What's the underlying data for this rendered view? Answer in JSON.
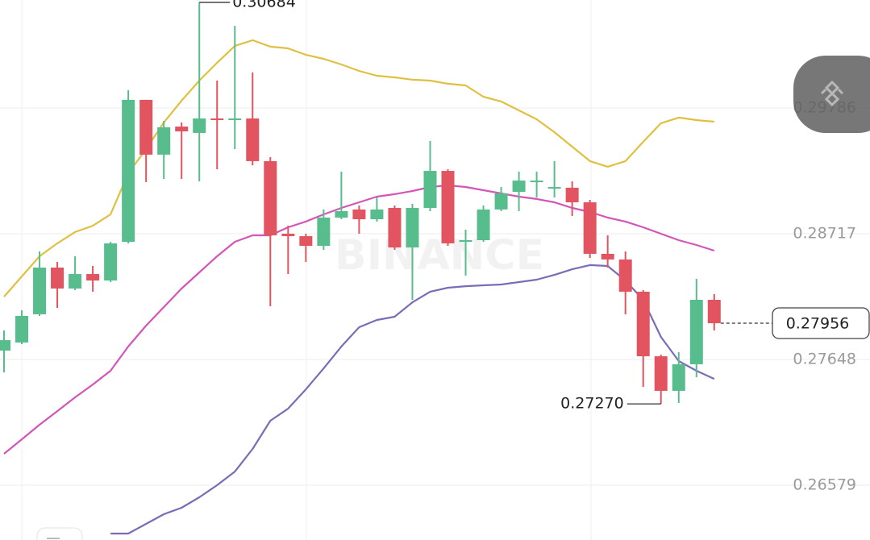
{
  "chart_data": {
    "type": "candlestick",
    "watermark": "BINANCE",
    "ylim": [
      0.26113,
      0.30704
    ],
    "yticks": [
      0.29786,
      0.28717,
      0.27648,
      0.26579
    ],
    "up_color": "#58bd8c",
    "down_color": "#e2545f",
    "open": [
      0.27723,
      0.27792,
      0.28032,
      0.28429,
      0.28251,
      0.28374,
      0.28319,
      0.28648,
      0.29855,
      0.29389,
      0.29628,
      0.29574,
      0.29697,
      0.29683,
      0.29697,
      0.29334,
      0.28717,
      0.28696,
      0.28614,
      0.28854,
      0.28923,
      0.2884,
      0.28936,
      0.286,
      0.28936,
      0.29251,
      0.28648,
      0.28662,
      0.28923,
      0.29073,
      0.29155,
      0.29101,
      0.29108,
      0.28984,
      0.28546,
      0.28498,
      0.28224,
      0.27675,
      0.27381,
      0.27607,
      0.28155
    ],
    "high": [
      0.27895,
      0.28066,
      0.28566,
      0.28477,
      0.28525,
      0.28443,
      0.28648,
      0.29937,
      0.29855,
      0.29676,
      0.29663,
      0.30684,
      0.30019,
      0.30485,
      0.30088,
      0.29368,
      0.28785,
      0.28717,
      0.28923,
      0.29245,
      0.28957,
      0.29025,
      0.28957,
      0.28971,
      0.29505,
      0.29265,
      0.28751,
      0.28957,
      0.29114,
      0.29245,
      0.29245,
      0.29334,
      0.29162,
      0.29005,
      0.28703,
      0.28566,
      0.28237,
      0.27689,
      0.2771,
      0.28333,
      0.28203
    ],
    "low": [
      0.27538,
      0.27778,
      0.28018,
      0.28086,
      0.28237,
      0.28224,
      0.28306,
      0.28635,
      0.29155,
      0.29183,
      0.29183,
      0.29162,
      0.29265,
      0.29436,
      0.29299,
      0.281,
      0.28374,
      0.28477,
      0.2858,
      0.2884,
      0.28717,
      0.2882,
      0.2858,
      0.28155,
      0.28909,
      0.28614,
      0.28361,
      0.28648,
      0.28909,
      0.28909,
      0.29025,
      0.29025,
      0.28868,
      0.28511,
      0.28429,
      0.28032,
      0.27415,
      0.2727,
      0.27278,
      0.27497,
      0.27895
    ],
    "close": [
      0.27812,
      0.28018,
      0.28429,
      0.28251,
      0.28374,
      0.28319,
      0.28635,
      0.29855,
      0.29389,
      0.29622,
      0.29587,
      0.29697,
      0.29683,
      0.29697,
      0.29334,
      0.28703,
      0.28696,
      0.28614,
      0.28854,
      0.28909,
      0.2884,
      0.28923,
      0.286,
      0.28936,
      0.29251,
      0.28635,
      0.28662,
      0.28923,
      0.2906,
      0.29169,
      0.29169,
      0.29114,
      0.28984,
      0.28546,
      0.28498,
      0.28224,
      0.27675,
      0.27381,
      0.27607,
      0.28155,
      0.27956
    ],
    "low_label": "0.27270",
    "lines": [
      {
        "color": "#e0c040",
        "values": [
          0.28182,
          0.28354,
          0.28525,
          0.28635,
          0.28731,
          0.28785,
          0.28881,
          0.29231,
          0.29436,
          0.29663,
          0.29848,
          0.30019,
          0.3017,
          0.30314,
          0.30362,
          0.30307,
          0.30293,
          0.30238,
          0.30204,
          0.30156,
          0.30101,
          0.3006,
          0.30046,
          0.30026,
          0.30019,
          0.29992,
          0.29978,
          0.29882,
          0.29841,
          0.29765,
          0.2969,
          0.2958,
          0.29457,
          0.29334,
          0.29286,
          0.29334,
          0.29498,
          0.29656,
          0.29704,
          0.29683,
          0.29669
        ]
      },
      {
        "color": "#d455b8",
        "values": [
          0.26846,
          0.26969,
          0.27093,
          0.27209,
          0.27326,
          0.27435,
          0.27552,
          0.27758,
          0.27936,
          0.28093,
          0.28251,
          0.28388,
          0.28525,
          0.28648,
          0.28703,
          0.28703,
          0.28772,
          0.2882,
          0.28881,
          0.28936,
          0.28984,
          0.29032,
          0.29053,
          0.2908,
          0.29114,
          0.29128,
          0.29114,
          0.29087,
          0.2906,
          0.29032,
          0.29012,
          0.28984,
          0.28936,
          0.28902,
          0.28854,
          0.2882,
          0.28772,
          0.28717,
          0.28662,
          0.28621,
          0.28573
        ]
      },
      {
        "color": "#7a6cb6",
        "values": [
          null,
          null,
          null,
          null,
          null,
          null,
          0.26168,
          0.26168,
          0.2625,
          0.26332,
          0.26387,
          0.26476,
          0.26579,
          0.26695,
          0.26887,
          0.27127,
          0.2723,
          0.27394,
          0.27572,
          0.27758,
          0.27922,
          0.27984,
          0.28011,
          0.28134,
          0.28224,
          0.28258,
          0.28271,
          0.28278,
          0.28285,
          0.28306,
          0.28326,
          0.28367,
          0.28415,
          0.2845,
          0.28443,
          0.28319,
          0.28155,
          0.2784,
          0.27634,
          0.27552,
          0.27483
        ]
      }
    ]
  }
}
